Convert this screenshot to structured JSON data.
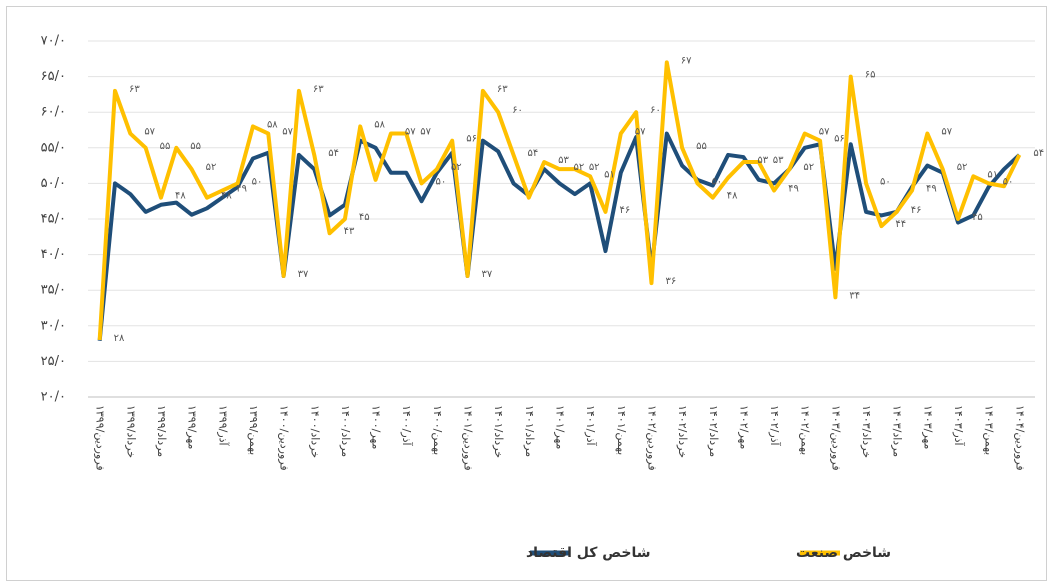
{
  "chart_data": {
    "type": "line",
    "categories": [
      "فروردین/۱۳۹۹",
      null,
      "خرداد/۱۳۹۹",
      null,
      "مرداد/۱۳۹۹",
      null,
      "مهر/۱۳۹۹",
      null,
      "آذر/۱۳۹۹",
      null,
      "بهمن/۱۳۹۹",
      null,
      "فروردین/۱۴۰۰",
      null,
      "خرداد/۱۴۰۰",
      null,
      "مرداد/۱۴۰۰",
      null,
      "مهر/۱۴۰۰",
      null,
      "آذر/۱۴۰۰",
      null,
      "بهمن/۱۴۰۰",
      null,
      "فروردین/۱۴۰۱",
      null,
      "خرداد/۱۴۰۱",
      null,
      "مرداد/۱۴۰۱",
      null,
      "مهر/۱۴۰۱",
      null,
      "آذر/۱۴۰۱",
      null,
      "بهمن/۱۴۰۱",
      null,
      "فروردین/۱۴۰۲",
      null,
      "خرداد/۱۴۰۲",
      null,
      "مرداد/۱۴۰۲",
      null,
      "مهر/۱۴۰۲",
      null,
      "آذر/۱۴۰۲",
      null,
      "بهمن/۱۴۰۲",
      null,
      "فروردین/۱۴۰۳",
      null,
      "خرداد/۱۴۰۳",
      null,
      "مرداد/۱۴۰۳",
      null,
      "مهر/۱۴۰۳",
      null,
      "آذر/۱۴۰۳",
      null,
      "بهمن/۱۴۰۳",
      null,
      "فروردین/۱۴۰۴"
    ],
    "series": [
      {
        "name": "شاخص کل اقتصاد",
        "color": "#1f4e79",
        "values": [
          27.9,
          50,
          48.5,
          46,
          47,
          47.3,
          45.6,
          46.5,
          48,
          49.5,
          53.5,
          54.3,
          37,
          54,
          52,
          45.5,
          47,
          56,
          55,
          51.5,
          51.5,
          47.5,
          51.5,
          54.3,
          37,
          56,
          54.5,
          50,
          48.3,
          52,
          50,
          48.5,
          50,
          40.5,
          51.5,
          56.5,
          38,
          57,
          52.5,
          50.5,
          49.7,
          54,
          53.7,
          50.5,
          50,
          52,
          55,
          55.5,
          38,
          55.5,
          46,
          45.5,
          46,
          49.5,
          52.5,
          51.5,
          44.5,
          45.5,
          49.5,
          52,
          54
        ]
      },
      {
        "name": "شاخص صنعت",
        "color": "#ffc000",
        "values": [
          28,
          63,
          57,
          55,
          48,
          55,
          52,
          48,
          49,
          50,
          58,
          57,
          37,
          63,
          54,
          43,
          45,
          58,
          50.5,
          57,
          57,
          50,
          52,
          56,
          37,
          63,
          60,
          54,
          48,
          53,
          52,
          52,
          51,
          46,
          57,
          60,
          36,
          67,
          55,
          50,
          48,
          50.8,
          53,
          53,
          49,
          52,
          57,
          56,
          34,
          65,
          50,
          44,
          46,
          49,
          57,
          52,
          45,
          51,
          50,
          49.6,
          54
        ],
        "value_labels": [
          "۲۸",
          "۶۳",
          "۵۷",
          "۵۵",
          "۴۸",
          "۵۵",
          "۵۲",
          "۴۸",
          "۴۹",
          "۵۰",
          "۵۸",
          "۵۷",
          "۳۷",
          "۶۳",
          "۵۴",
          "۴۳",
          "۴۵",
          "۵۸",
          null,
          "۵۷",
          "۵۷",
          "۵۰",
          "۵۲",
          "۵۶",
          "۳۷",
          "۶۳",
          "۶۰",
          "۵۴",
          null,
          "۵۳",
          "۵۲",
          "۵۲",
          "۵۱",
          "۴۶",
          "۵۷",
          "۶۰",
          "۳۶",
          "۶۷",
          "۵۵",
          "۵۰",
          "۴۸",
          null,
          "۵۳",
          "۵۳",
          "۴۹",
          "۵۲",
          "۵۷",
          "۵۶",
          "۳۴",
          "۶۵",
          "۵۰",
          "۴۴",
          "۴۶",
          "۴۹",
          "۵۷",
          "۵۲",
          "۴۵",
          "۵۱",
          "۵۰",
          null,
          "۵۴"
        ]
      }
    ],
    "ylim": [
      20,
      70
    ],
    "yticks": [
      {
        "value": 20,
        "label": "۲۰/۰"
      },
      {
        "value": 25,
        "label": "۲۵/۰"
      },
      {
        "value": 30,
        "label": "۳۰/۰"
      },
      {
        "value": 35,
        "label": "۳۵/۰"
      },
      {
        "value": 40,
        "label": "۴۰/۰"
      },
      {
        "value": 45,
        "label": "۴۵/۰"
      },
      {
        "value": 50,
        "label": "۵۰/۰"
      },
      {
        "value": 55,
        "label": "۵۵/۰"
      },
      {
        "value": 60,
        "label": "۶۰/۰"
      },
      {
        "value": 65,
        "label": "۶۵/۰"
      },
      {
        "value": 70,
        "label": "۷۰/۰"
      }
    ],
    "grid": true,
    "legend": "bottom"
  }
}
